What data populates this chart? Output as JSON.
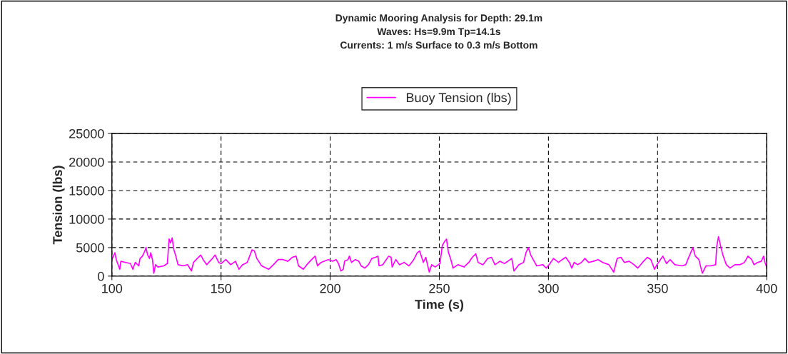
{
  "chart_data": {
    "type": "line",
    "title": "Dynamic Mooring Analysis for Depth: 29.1m\nWaves: Hs=9.9m Tp=14.1s\nCurrents: 1 m/s Surface to 0.3 m/s Bottom",
    "xlabel": "Time (s)",
    "ylabel": "Tension (lbs)",
    "xlim": [
      100,
      400
    ],
    "xticks": [
      100,
      150,
      200,
      250,
      300,
      350,
      400
    ],
    "ylim": [
      0,
      25000
    ],
    "yticks": [
      0,
      5000,
      10000,
      15000,
      20000,
      25000
    ],
    "grid": true,
    "legend": "top",
    "line_style": "solid",
    "marker": "none",
    "x": [
      100.0,
      101.4,
      102.0,
      103.6,
      104.1,
      106.3,
      108.5,
      109.6,
      110.7,
      112.3,
      112.9,
      114.0,
      115.1,
      115.6,
      116.4,
      117.2,
      117.8,
      118.6,
      119.2,
      120.0,
      121.1,
      123.8,
      125.4,
      126.2,
      126.9,
      127.6,
      128.4,
      129.3,
      130.3,
      132.5,
      134.7,
      136.4,
      137.4,
      139.1,
      140.7,
      141.8,
      143.4,
      145.6,
      147.3,
      148.9,
      150.0,
      152.2,
      154.4,
      156.6,
      158.2,
      159.8,
      162.0,
      164.2,
      165.3,
      166.4,
      168.6,
      171.8,
      174.0,
      176.2,
      178.4,
      180.6,
      182.7,
      184.4,
      185.5,
      187.7,
      189.3,
      191.5,
      193.1,
      194.2,
      195.8,
      199.1,
      201.1,
      202.7,
      203.8,
      204.9,
      206.0,
      206.6,
      208.2,
      208.8,
      209.8,
      211.5,
      213.1,
      214.2,
      215.9,
      217.5,
      219.1,
      220.8,
      221.9,
      222.4,
      224.1,
      225.7,
      226.8,
      227.9,
      228.4,
      230.1,
      231.7,
      233.9,
      236.1,
      238.3,
      239.9,
      241.0,
      242.7,
      243.8,
      245.4,
      246.5,
      248.1,
      250.3,
      251.4,
      252.5,
      253.3,
      254.2,
      255.3,
      256.3,
      258.5,
      261.3,
      263.5,
      265.1,
      266.7,
      267.8,
      270.0,
      272.2,
      273.9,
      275.5,
      277.7,
      279.9,
      283.2,
      284.2,
      286.4,
      288.6,
      289.7,
      290.8,
      291.9,
      293.0,
      294.6,
      297.4,
      299.0,
      300.7,
      302.3,
      304.6,
      306.3,
      307.9,
      309.6,
      310.7,
      311.8,
      313.4,
      315.1,
      316.7,
      318.4,
      320.5,
      322.7,
      324.9,
      327.7,
      329.9,
      331.5,
      333.2,
      334.8,
      337.0,
      339.2,
      340.9,
      343.1,
      345.3,
      346.9,
      348.6,
      349.7,
      351.3,
      352.4,
      354.1,
      355.7,
      357.9,
      361.2,
      362.9,
      364.5,
      366.2,
      367.3,
      368.9,
      370.5,
      372.2,
      374.4,
      376.6,
      377.1,
      377.9,
      378.8,
      379.9,
      381.5,
      383.2,
      385.4,
      387.6,
      389.8,
      391.4,
      393.1,
      394.2,
      395.8,
      397.5,
      398.6,
      399.2,
      400.0
    ],
    "series": [
      {
        "name": "Buoy Tension (lbs)",
        "color": "#ff00ff",
        "values": [
          2900,
          4100,
          2900,
          1200,
          2600,
          2400,
          2200,
          1200,
          2400,
          1800,
          3100,
          3500,
          4400,
          5000,
          3700,
          3100,
          4100,
          2900,
          500,
          2000,
          1600,
          1800,
          2200,
          6500,
          5800,
          6700,
          4600,
          3500,
          2000,
          1800,
          2000,
          900,
          2400,
          3100,
          3700,
          2900,
          2000,
          2900,
          3700,
          2400,
          2200,
          2900,
          2000,
          2600,
          1200,
          2000,
          2400,
          4600,
          4400,
          3100,
          1800,
          1200,
          2000,
          2900,
          2900,
          2600,
          3300,
          3500,
          1800,
          1200,
          2000,
          2900,
          3500,
          1800,
          2400,
          2900,
          2600,
          2900,
          2200,
          900,
          1200,
          2600,
          2900,
          3500,
          2400,
          2900,
          2600,
          1800,
          1400,
          2000,
          3100,
          3300,
          3500,
          1800,
          2000,
          2900,
          3500,
          3300,
          1600,
          2900,
          2000,
          2400,
          1800,
          2900,
          4100,
          4400,
          2400,
          3300,
          700,
          2000,
          1600,
          2200,
          5400,
          6100,
          6500,
          4100,
          2900,
          1400,
          2000,
          1600,
          2400,
          3300,
          3900,
          2400,
          2000,
          3100,
          3300,
          2000,
          2600,
          2200,
          3100,
          900,
          2000,
          2400,
          4100,
          5000,
          3700,
          2900,
          1800,
          2000,
          1400,
          2200,
          3100,
          2400,
          2900,
          3300,
          2400,
          1400,
          2400,
          2000,
          2400,
          3100,
          2400,
          2600,
          2900,
          2400,
          2000,
          700,
          3100,
          3300,
          2400,
          2600,
          2000,
          1400,
          2400,
          3300,
          2900,
          1200,
          2000,
          2900,
          3500,
          2200,
          2900,
          2000,
          1800,
          2000,
          3500,
          5000,
          3500,
          2900,
          500,
          1800,
          1800,
          2000,
          5200,
          6900,
          5400,
          3700,
          2000,
          1400,
          2000,
          2000,
          2400,
          3500,
          2900,
          2000,
          2400,
          2600,
          3500,
          2400,
          1600
        ]
      }
    ]
  }
}
